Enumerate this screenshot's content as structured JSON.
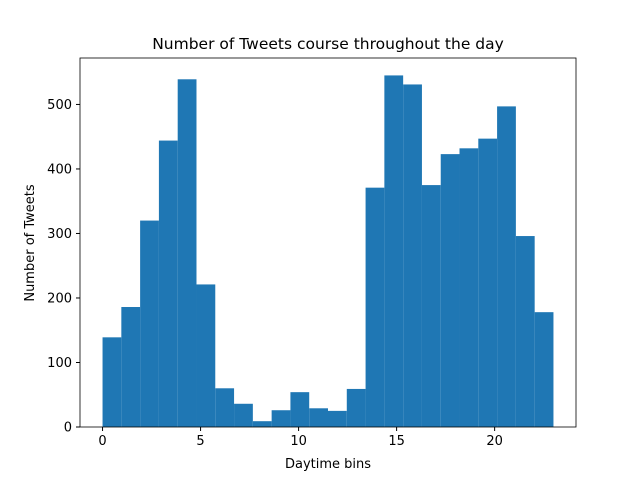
{
  "chart_data": {
    "type": "histogram",
    "title": "Number of Tweets course throughout the day",
    "xlabel": "Daytime bins",
    "ylabel": "Number of Tweets",
    "bins": [
      0,
      0.9583,
      1.9167,
      2.875,
      3.8333,
      4.7917,
      5.75,
      6.7083,
      7.6667,
      8.625,
      9.5833,
      10.5417,
      11.5,
      12.4583,
      13.4167,
      14.375,
      15.3333,
      16.2917,
      17.25,
      18.2083,
      19.1667,
      20.125,
      21.0833,
      22.0417,
      23
    ],
    "counts": [
      139,
      186,
      320,
      444,
      539,
      221,
      60,
      36,
      9,
      26,
      54,
      29,
      25,
      59,
      371,
      545,
      531,
      375,
      423,
      432,
      447,
      497,
      296,
      178
    ],
    "color": "#1f77b4",
    "xlim": [
      -1.15,
      24.15
    ],
    "xticks": [
      0,
      5,
      10,
      15,
      20
    ],
    "ylim": [
      0,
      572
    ],
    "yticks": [
      0,
      100,
      200,
      300,
      400,
      500
    ]
  }
}
